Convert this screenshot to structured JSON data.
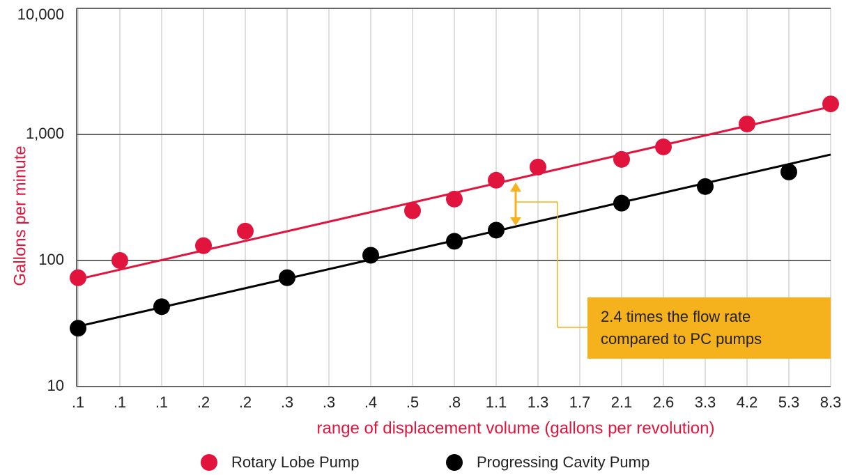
{
  "chart_data": {
    "type": "scatter",
    "y_label": "Gallons per minute",
    "x_label": "range of displacement volume  (gallons per revolution)",
    "log_y": true,
    "categories": [
      ".1",
      ".1",
      ".1",
      ".2",
      ".2",
      ".3",
      ".3",
      ".4",
      ".5",
      ".8",
      "1.1",
      "1.3",
      "1.7",
      "2.1",
      "2.6",
      "3.3",
      "4.2",
      "5.3",
      "8.3"
    ],
    "ylim": [
      10,
      10000
    ],
    "yticks": [
      {
        "value": 10000,
        "label": "10,000"
      },
      {
        "value": 1000,
        "label": "1,000"
      },
      100,
      10
    ],
    "series": [
      {
        "name": "Rotary Lobe Pump",
        "color": "#e0143c",
        "values": [
          73,
          100,
          null,
          131,
          171,
          null,
          null,
          null,
          248,
          307,
          433,
          551,
          null,
          634,
          796,
          null,
          1210,
          null,
          1746
        ],
        "trend": [
          71,
          1660
        ]
      },
      {
        "name": "Progressing Cavity Pump",
        "color": "#000000",
        "values": [
          29,
          null,
          43,
          null,
          null,
          73,
          null,
          110,
          null,
          142,
          174,
          null,
          null,
          285,
          null,
          386,
          null,
          504,
          null
        ],
        "trend": [
          30,
          692
        ]
      }
    ],
    "annotation": [
      "2.4 times the flow rate",
      "compared to PC pumps"
    ],
    "annotation_color": "#f5b21c"
  }
}
